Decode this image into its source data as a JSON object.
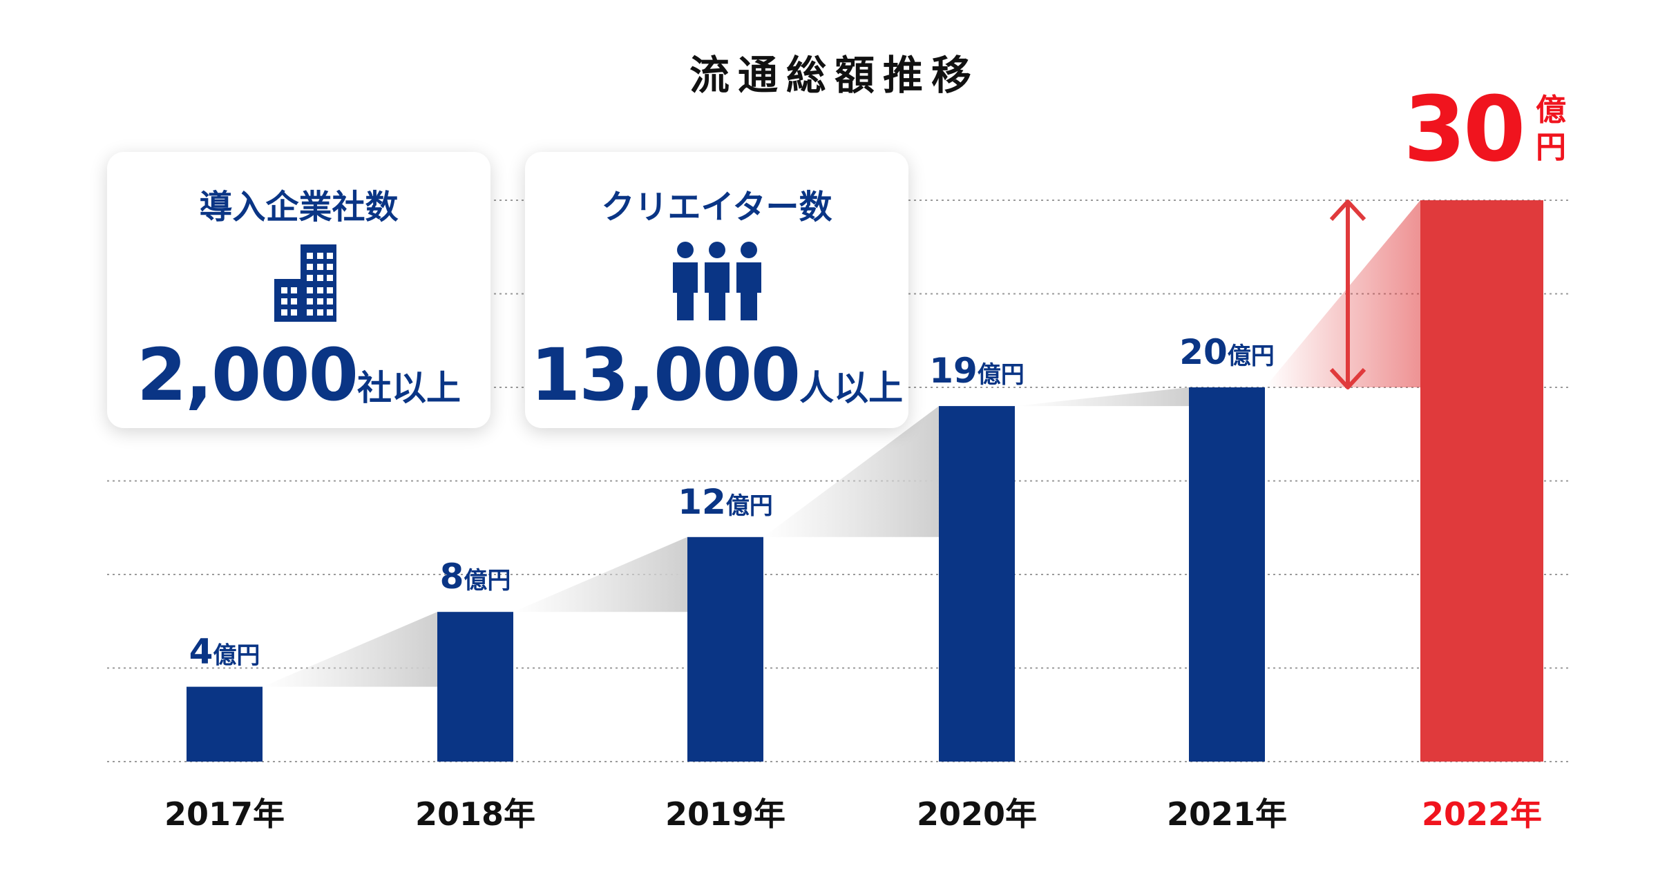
{
  "chart_data": {
    "type": "bar",
    "title": "流通総額推移",
    "categories": [
      "2017年",
      "2018年",
      "2019年",
      "2020年",
      "2021年",
      "2022年"
    ],
    "values": [
      4,
      8,
      12,
      19,
      20,
      30
    ],
    "value_labels": [
      {
        "num": "4",
        "unit": "億円"
      },
      {
        "num": "8",
        "unit": "億円"
      },
      {
        "num": "12",
        "unit": "億円"
      },
      {
        "num": "19",
        "unit": "億円"
      },
      {
        "num": "20",
        "unit": "億円"
      },
      {
        "num": "30",
        "unit_top": "億",
        "unit_bottom": "円"
      }
    ],
    "ylim": [
      0,
      30
    ],
    "grid": true,
    "gridline_style": "dotted",
    "colors": {
      "bar": "#0a3585",
      "highlight_bar": "#e03a3c",
      "highlight_text": "#f0141e",
      "axis_text": "#111111"
    }
  },
  "stats": [
    {
      "title": "導入企業社数",
      "value": "2,000",
      "unit": "社以上",
      "icon": "building-icon"
    },
    {
      "title": "クリエイター数",
      "value": "13,000",
      "unit": "人以上",
      "icon": "people-icon"
    }
  ]
}
